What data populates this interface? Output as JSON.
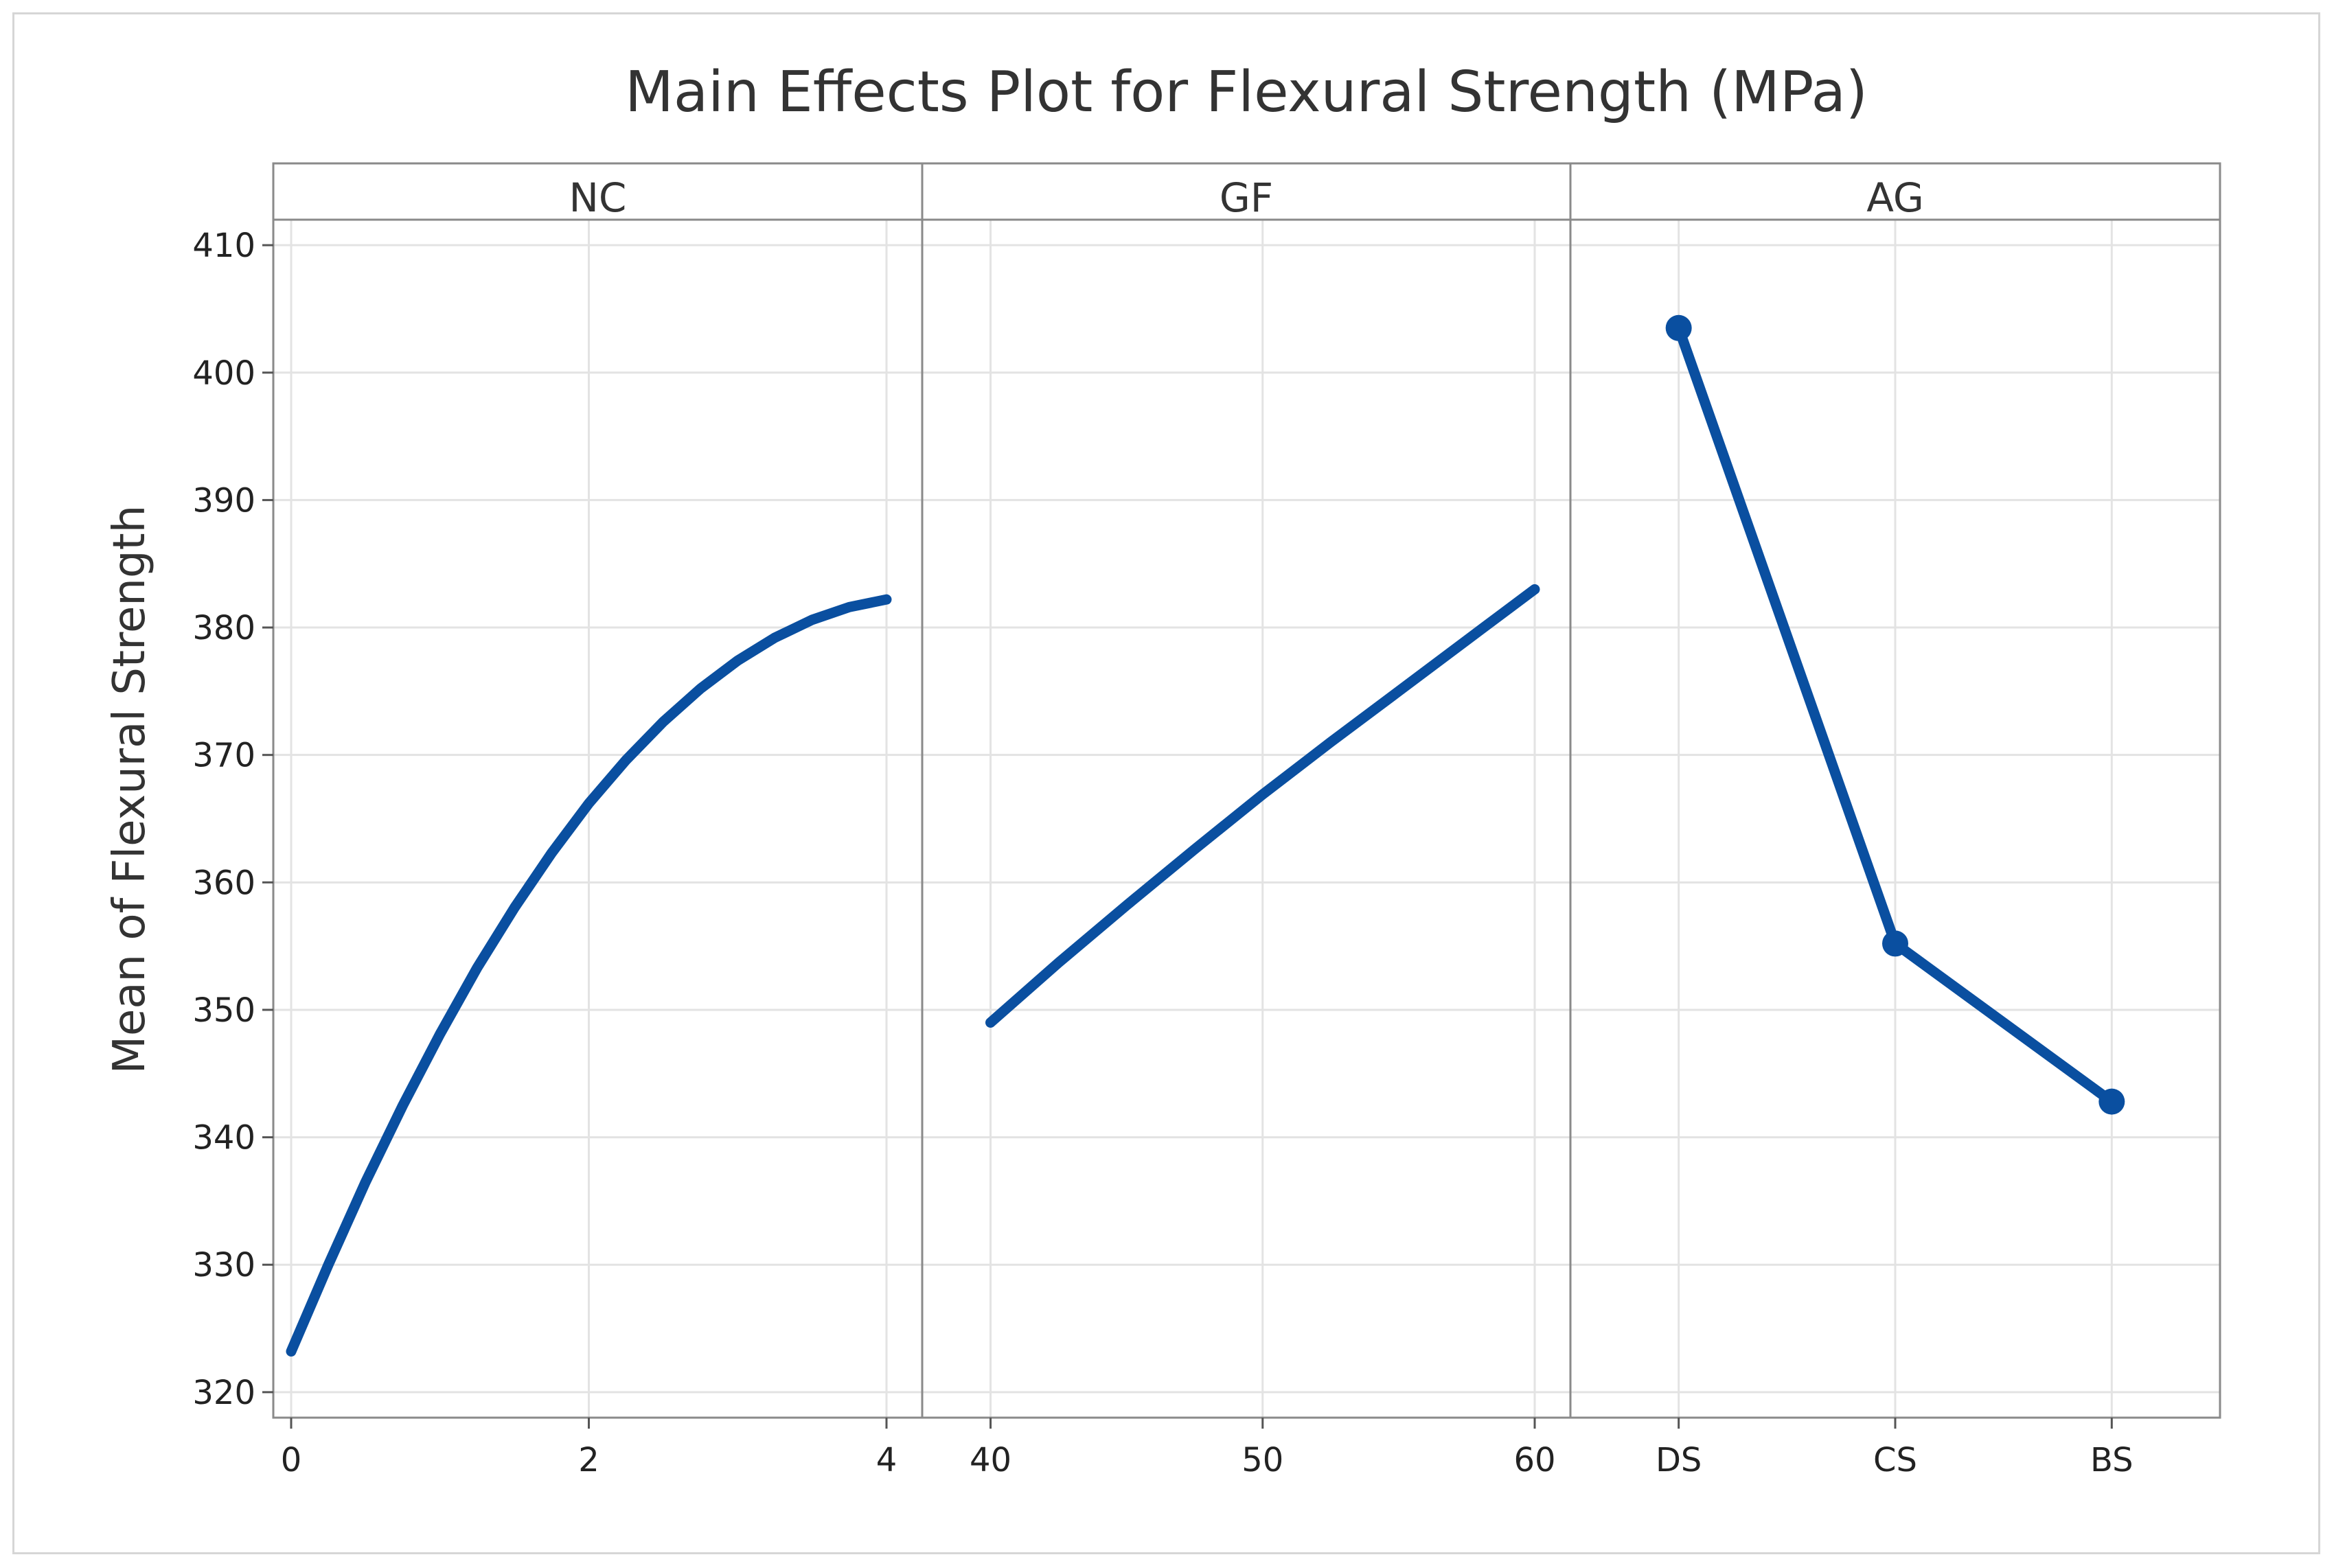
{
  "chart_data": {
    "type": "line",
    "title": "Main Effects Plot for Flexural Strength (MPa)",
    "ylabel": "Mean of Flexural Strength",
    "ylim": [
      318,
      412
    ],
    "yticks": [
      "320",
      "330",
      "340",
      "350",
      "360",
      "370",
      "380",
      "390",
      "400",
      "410"
    ],
    "grid": true,
    "line_color": "#0a4fa0",
    "panels": [
      {
        "name": "NC",
        "xlim": [
          -0.12,
          4.0
        ],
        "xticks": [
          "0",
          "2",
          "4"
        ],
        "xtick_values": [
          0,
          2,
          4
        ],
        "points_x": [
          0,
          0.25,
          0.5,
          0.75,
          1,
          1.25,
          1.5,
          1.75,
          2,
          2.25,
          2.5,
          2.75,
          3,
          3.25,
          3.5,
          3.75,
          4
        ],
        "points_y": [
          323.2,
          330.0,
          336.5,
          342.5,
          348.1,
          353.3,
          358.0,
          362.3,
          366.2,
          369.6,
          372.6,
          375.2,
          377.4,
          379.2,
          380.6,
          381.6,
          382.2
        ],
        "markers": false
      },
      {
        "name": "GF",
        "xlim": [
          38.8,
          60.0
        ],
        "xticks": [
          "40",
          "50",
          "60"
        ],
        "xtick_values": [
          40,
          50,
          60
        ],
        "points_x": [
          40,
          42.5,
          45,
          47.5,
          50,
          52.5,
          55,
          57.5,
          60
        ],
        "points_y": [
          349.0,
          353.7,
          358.2,
          362.6,
          366.9,
          371.0,
          375.0,
          379.0,
          383.0
        ],
        "markers": false
      },
      {
        "name": "AG",
        "xlim": [
          0.5,
          3.5
        ],
        "xticks": [
          "DS",
          "CS",
          "BS"
        ],
        "xtick_values": [
          1,
          2,
          3
        ],
        "points_x": [
          1,
          2,
          3
        ],
        "points_y": [
          403.5,
          355.2,
          342.8
        ],
        "markers": true
      }
    ]
  }
}
